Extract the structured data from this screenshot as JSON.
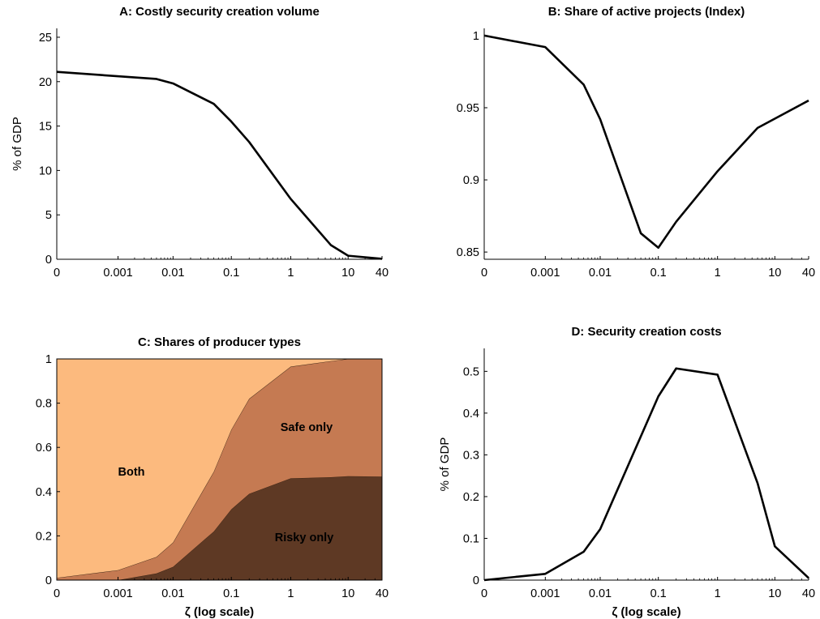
{
  "colors": {
    "line": "#000000",
    "both_fill": "#FCBA7E",
    "safe_fill": "#C57A52",
    "risky_fill": "#5E3924"
  },
  "chart_data": [
    {
      "id": "A",
      "type": "line",
      "title": "A: Costly security creation volume",
      "xlabel": "",
      "ylabel": "% of GDP",
      "x_scale": "log (0 shown at left)",
      "x_ticks": [
        "0",
        "0.001",
        "0.01",
        "0.1",
        "1",
        "10",
        "40"
      ],
      "y_ticks": [
        "0",
        "5",
        "10",
        "15",
        "20",
        "25"
      ],
      "ylim": [
        0,
        26
      ],
      "series": [
        {
          "x": [
            "0",
            "0.005",
            "0.01",
            "0.05",
            "0.1",
            "0.2",
            "1",
            "5",
            "10",
            "40"
          ],
          "y": [
            21.1,
            20.3,
            19.8,
            17.5,
            15.5,
            13.2,
            6.8,
            1.6,
            0.4,
            0.05
          ]
        }
      ]
    },
    {
      "id": "B",
      "type": "line",
      "title": "B: Share of active projects (Index)",
      "xlabel": "",
      "ylabel": "",
      "x_scale": "log (0 shown at left)",
      "x_ticks": [
        "0",
        "0.001",
        "0.01",
        "0.1",
        "1",
        "10",
        "40"
      ],
      "y_ticks": [
        "0.85",
        "0.9",
        "0.95",
        "1"
      ],
      "ylim": [
        0.845,
        1.005
      ],
      "series": [
        {
          "x": [
            "0",
            "0.001",
            "0.005",
            "0.01",
            "0.05",
            "0.1",
            "0.2",
            "1",
            "5",
            "40"
          ],
          "y": [
            1.0,
            0.992,
            0.966,
            0.942,
            0.863,
            0.853,
            0.871,
            0.906,
            0.936,
            0.955
          ]
        }
      ]
    },
    {
      "id": "C",
      "type": "area",
      "title": "C: Shares of producer types",
      "xlabel": "ζ (log scale)",
      "ylabel": "",
      "x_scale": "log (0 shown at left)",
      "x_ticks": [
        "0",
        "0.001",
        "0.01",
        "0.1",
        "1",
        "10",
        "40"
      ],
      "y_ticks": [
        "0",
        "0.2",
        "0.4",
        "0.6",
        "0.8",
        "1"
      ],
      "ylim": [
        0,
        1
      ],
      "x": [
        "0",
        "0.001",
        "0.005",
        "0.01",
        "0.05",
        "0.1",
        "0.2",
        "1",
        "5",
        "10",
        "40"
      ],
      "series": [
        {
          "name": "Risky only",
          "values": [
            0.0,
            0.0,
            0.03,
            0.06,
            0.22,
            0.32,
            0.39,
            0.46,
            0.465,
            0.47,
            0.468
          ]
        },
        {
          "name": "Safe only",
          "values": [
            0.01,
            0.045,
            0.075,
            0.11,
            0.27,
            0.36,
            0.43,
            0.505,
            0.525,
            0.53,
            0.532
          ]
        },
        {
          "name": "Both",
          "values": [
            0.99,
            0.955,
            0.895,
            0.83,
            0.51,
            0.32,
            0.18,
            0.035,
            0.01,
            0.0,
            0.0
          ]
        }
      ]
    },
    {
      "id": "D",
      "type": "line",
      "title": "D: Security creation costs",
      "xlabel": "ζ (log scale)",
      "ylabel": "% of GDP",
      "x_scale": "log (0 shown at left)",
      "x_ticks": [
        "0",
        "0.001",
        "0.01",
        "0.1",
        "1",
        "10",
        "40"
      ],
      "y_ticks": [
        "0",
        "0.1",
        "0.2",
        "0.3",
        "0.4",
        "0.5"
      ],
      "ylim": [
        0,
        0.555
      ],
      "series": [
        {
          "x": [
            "0",
            "0.001",
            "0.005",
            "0.01",
            "0.1",
            "0.2",
            "1",
            "5",
            "10",
            "40"
          ],
          "y": [
            0.0,
            0.015,
            0.068,
            0.122,
            0.44,
            0.507,
            0.492,
            0.232,
            0.081,
            0.005
          ]
        }
      ]
    }
  ]
}
